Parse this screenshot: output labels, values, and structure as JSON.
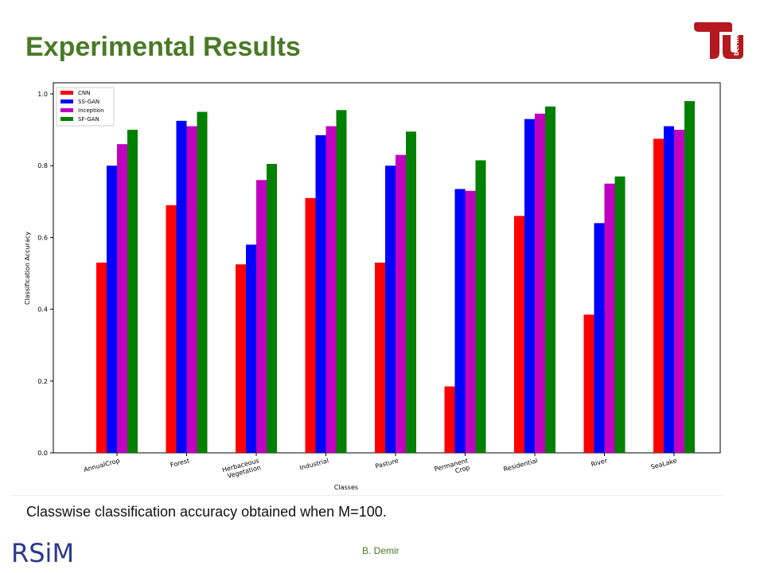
{
  "slide": {
    "title": "Experimental Results",
    "caption": "Classwise classification accuracy obtained when M=100.",
    "author": "B. Demir",
    "logo_right_text": "berlin",
    "logo_left_text": "RSiM",
    "title_color": "#4a7a25"
  },
  "chart_data": {
    "type": "bar",
    "xlabel": "Classes",
    "ylabel": "Classification Accuracy",
    "ylim": [
      0,
      1.0
    ],
    "yticks": [
      "0.0",
      "0.2",
      "0.4",
      "0.6",
      "0.8",
      "1.0"
    ],
    "legend_position": "top-left",
    "categories": [
      [
        "AnnualCrop"
      ],
      [
        "Forest"
      ],
      [
        "Herbaceous",
        "Vegetation"
      ],
      [
        "Industrial"
      ],
      [
        "Pasture"
      ],
      [
        "Permanent",
        "Crop"
      ],
      [
        "Residential"
      ],
      [
        "River"
      ],
      [
        "SeaLake"
      ]
    ],
    "series": [
      {
        "name": "CNN",
        "color": "#ff0000",
        "values": [
          0.53,
          0.69,
          0.525,
          0.71,
          0.53,
          0.185,
          0.66,
          0.385,
          0.875
        ]
      },
      {
        "name": "SS-GAN",
        "color": "#0000ff",
        "values": [
          0.8,
          0.925,
          0.58,
          0.885,
          0.8,
          0.735,
          0.93,
          0.64,
          0.91
        ]
      },
      {
        "name": "Inception",
        "color": "#bf00bf",
        "values": [
          0.86,
          0.91,
          0.76,
          0.91,
          0.83,
          0.73,
          0.945,
          0.75,
          0.9
        ]
      },
      {
        "name": "SF-GAN",
        "color": "#008000",
        "values": [
          0.9,
          0.95,
          0.805,
          0.955,
          0.895,
          0.815,
          0.965,
          0.77,
          0.98
        ]
      }
    ]
  }
}
